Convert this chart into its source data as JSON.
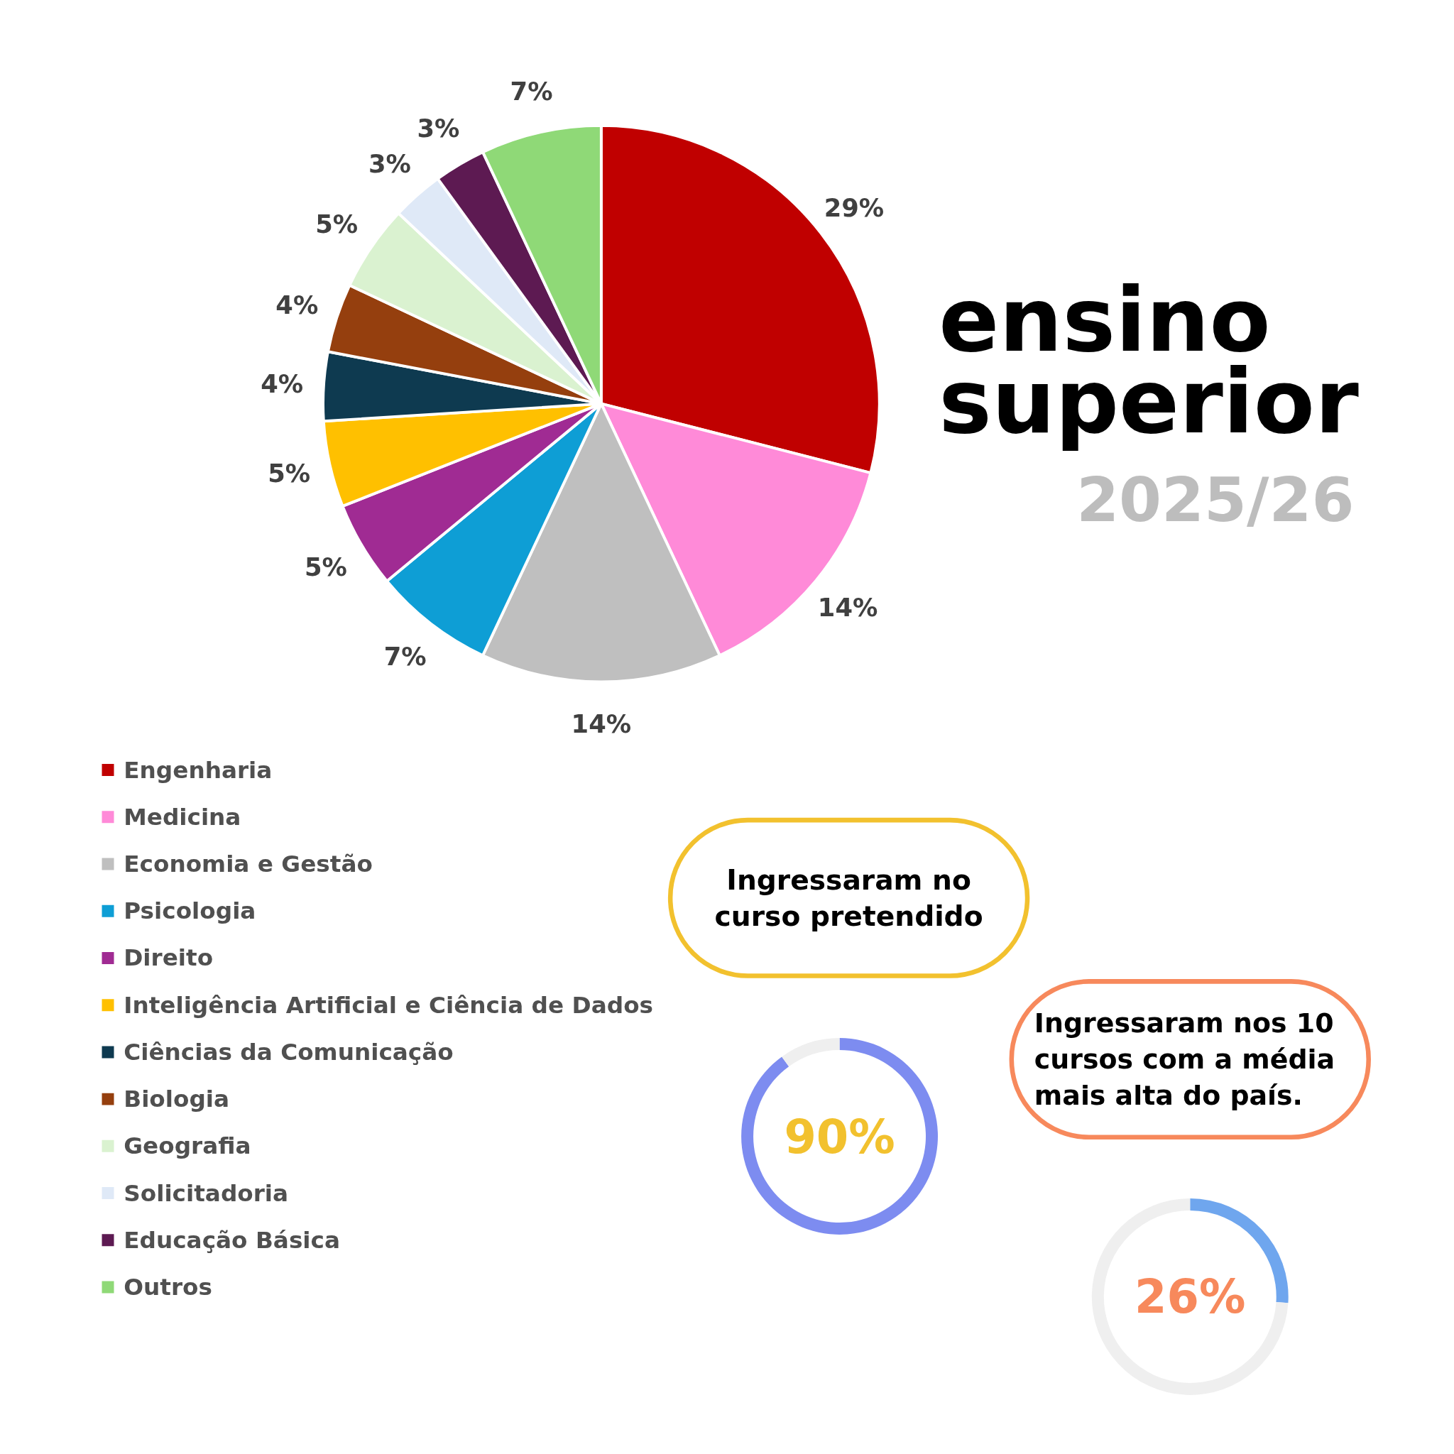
{
  "chart_data": [
    {
      "type": "pie",
      "title": "ensino superior",
      "subtitle": "2025/26",
      "legend": "bottom",
      "categories": [
        "Engenharia",
        "Medicina",
        "Economia e Gestão",
        "Psicologia",
        "Direito",
        "Inteligência Artificial e Ciência de Dados",
        "Ciências da Comunicação",
        "Biologia",
        "Geografia",
        "Solicitadoria",
        "Educação Básica",
        "Outros"
      ],
      "values": [
        29,
        14,
        14,
        7,
        5,
        5,
        4,
        4,
        5,
        3,
        3,
        7
      ],
      "colors": [
        "#c00000",
        "#ff8ad8",
        "#bfbfbf",
        "#0e9ed5",
        "#a02b93",
        "#ffc000",
        "#0e3a50",
        "#953f0e",
        "#daf2d0",
        "#dfe9f7",
        "#5d1a52",
        "#8fd977"
      ],
      "value_labels": [
        "29%",
        "14%",
        "14%",
        "7%",
        "5%",
        "5%",
        "4%",
        "4%",
        "5%",
        "3%",
        "3%",
        "7%"
      ]
    },
    {
      "type": "donut",
      "title": "Ingressaram no\ncurso pretendido",
      "categories": [
        null,
        null
      ],
      "values": [
        90,
        10
      ],
      "colors": [
        "#7d8cf0",
        "#efefef"
      ],
      "value_labels": [
        "90%",
        null
      ]
    },
    {
      "type": "donut",
      "title": "Ingressaram nos 10\ncursos com a média\nmais alta do país.",
      "categories": [
        null,
        null
      ],
      "values": [
        26,
        74
      ],
      "colors": [
        "#6fa6ee",
        "#efefef"
      ],
      "value_labels": [
        "26%",
        null
      ]
    }
  ]
}
